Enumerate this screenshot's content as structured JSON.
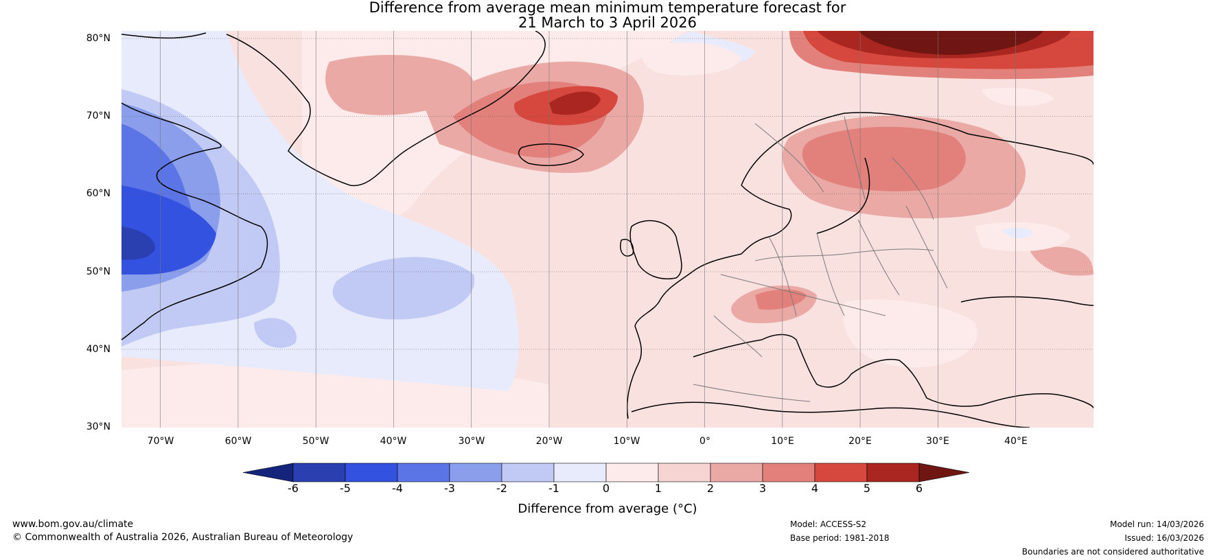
{
  "title": {
    "line1": "Difference from average mean minimum temperature forecast for",
    "line2": "21 March to 3 April 2026"
  },
  "map": {
    "latitude_labels": [
      "80°N",
      "70°N",
      "60°N",
      "50°N",
      "40°N",
      "30°N"
    ],
    "longitude_labels": [
      "70°W",
      "60°W",
      "50°W",
      "40°W",
      "30°W",
      "20°W",
      "10°W",
      "0°",
      "10°E",
      "20°E",
      "30°E",
      "40°E"
    ],
    "extent": {
      "lon_min": -75,
      "lon_max": 50,
      "lat_min": 30,
      "lat_max": 81
    },
    "colors": {
      "ocean_default": "#f8e1df",
      "coast": "#000000",
      "borders": "#7a7a7a"
    }
  },
  "colorbar": {
    "ticks": [
      "-6",
      "-5",
      "-4",
      "-3",
      "-2",
      "-1",
      "0",
      "1",
      "2",
      "3",
      "4",
      "5",
      "6"
    ],
    "colors": [
      "#14247a",
      "#2a3fb0",
      "#3452e0",
      "#5b74e6",
      "#8a9eec",
      "#c0caf4",
      "#e7ebfc",
      "#fcebea",
      "#f5d4d2",
      "#eba9a6",
      "#e2807b",
      "#d6473e",
      "#a92720",
      "#6f1612"
    ],
    "label": "Difference from average (°C)"
  },
  "footer": {
    "url": "www.bom.gov.au/climate",
    "copyright": "© Commonwealth of Australia 2026, Australian Bureau of Meteorology",
    "model": "Model: ACCESS-S2",
    "base_period": "Base period: 1981-2018",
    "model_run": "Model run: 14/03/2026",
    "issued": "Issued: 16/03/2026",
    "disclaimer": "Boundaries are not considered authoritative"
  }
}
